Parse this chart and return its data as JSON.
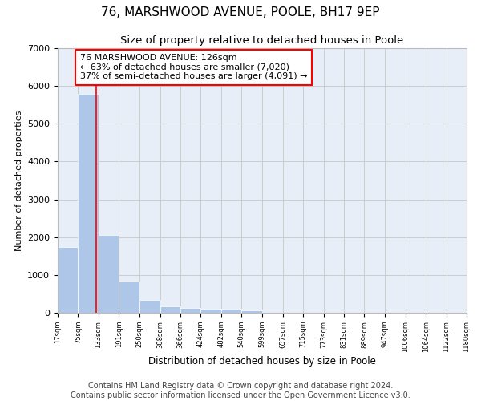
{
  "title": "76, MARSHWOOD AVENUE, POOLE, BH17 9EP",
  "subtitle": "Size of property relative to detached houses in Poole",
  "xlabel": "Distribution of detached houses by size in Poole",
  "ylabel": "Number of detached properties",
  "bar_color": "#aec6e8",
  "bin_labels": [
    "17sqm",
    "75sqm",
    "133sqm",
    "191sqm",
    "250sqm",
    "308sqm",
    "366sqm",
    "424sqm",
    "482sqm",
    "540sqm",
    "599sqm",
    "657sqm",
    "715sqm",
    "773sqm",
    "831sqm",
    "889sqm",
    "947sqm",
    "1006sqm",
    "1064sqm",
    "1122sqm",
    "1180sqm"
  ],
  "bar_values": [
    1750,
    5800,
    2050,
    820,
    340,
    180,
    120,
    100,
    100,
    70,
    0,
    0,
    0,
    0,
    0,
    0,
    0,
    0,
    0,
    0,
    0
  ],
  "bin_edges": [
    17,
    75,
    133,
    191,
    250,
    308,
    366,
    424,
    482,
    540,
    599,
    657,
    715,
    773,
    831,
    889,
    947,
    1006,
    1064,
    1122,
    1180
  ],
  "red_line_x": 126,
  "ylim": [
    0,
    7000
  ],
  "yticks": [
    0,
    1000,
    2000,
    3000,
    4000,
    5000,
    6000,
    7000
  ],
  "annotation_line1": "76 MARSHWOOD AVENUE: 126sqm",
  "annotation_line2": "← 63% of detached houses are smaller (7,020)",
  "annotation_line3": "37% of semi-detached houses are larger (4,091) →",
  "footer_line1": "Contains HM Land Registry data © Crown copyright and database right 2024.",
  "footer_line2": "Contains public sector information licensed under the Open Government Licence v3.0.",
  "grid_color": "#cccccc",
  "background_color": "#e8eef7",
  "title_fontsize": 11,
  "subtitle_fontsize": 9.5,
  "annotation_fontsize": 8,
  "footer_fontsize": 7
}
